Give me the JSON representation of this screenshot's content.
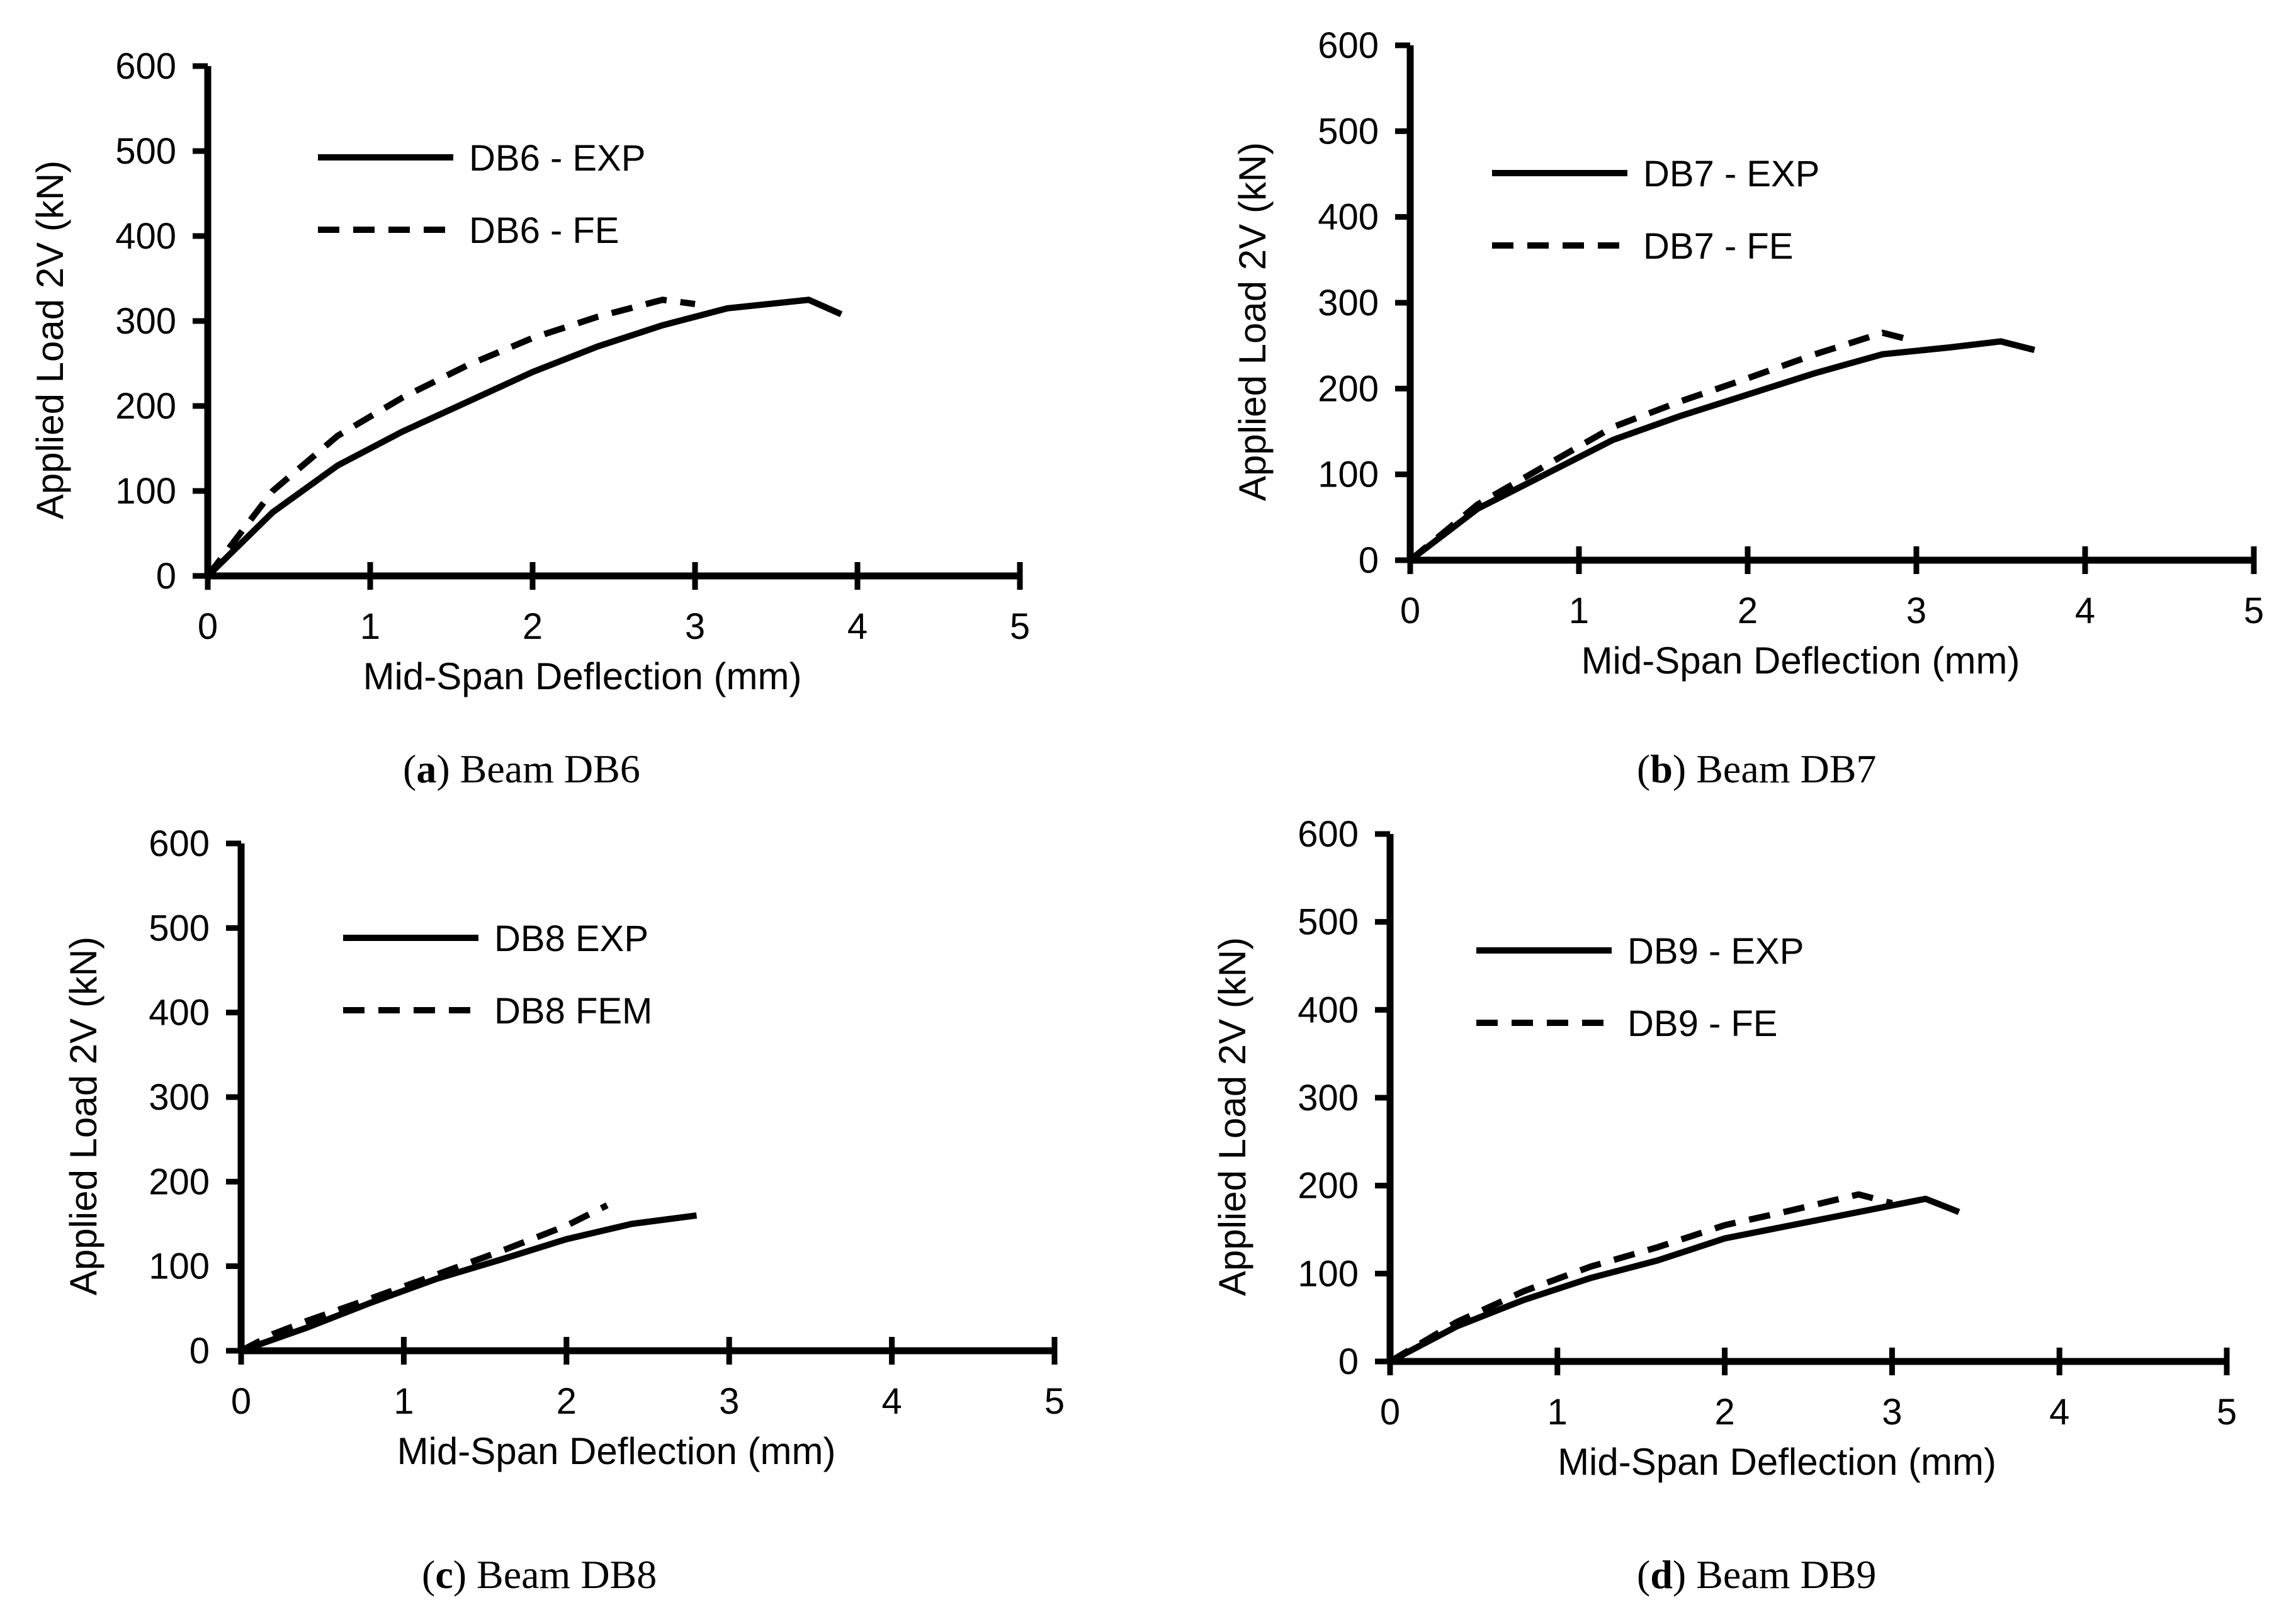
{
  "figure": {
    "panels": [
      {
        "letter": "a",
        "caption": "Beam DB6"
      },
      {
        "letter": "b",
        "caption": "Beam DB7"
      },
      {
        "letter": "c",
        "caption": "Beam DB8"
      },
      {
        "letter": "d",
        "caption": "Beam DB9"
      }
    ]
  },
  "chart_data": [
    {
      "type": "line",
      "title": "",
      "xlabel": "Mid-Span Deflection (mm)",
      "ylabel": "Applied Load 2V (kN)",
      "xlim": [
        0,
        5
      ],
      "ylim": [
        0,
        600
      ],
      "xticks": [
        "0",
        "1",
        "2",
        "3",
        "4",
        "5"
      ],
      "yticks": [
        "0",
        "100",
        "200",
        "300",
        "400",
        "500",
        "600"
      ],
      "legend_position": "top-left",
      "series": [
        {
          "name": "DB6 - EXP",
          "style": "solid",
          "x": [
            0,
            0.4,
            0.8,
            1.2,
            1.6,
            2.0,
            2.4,
            2.8,
            3.2,
            3.7,
            3.9
          ],
          "y": [
            0,
            75,
            130,
            170,
            205,
            240,
            270,
            295,
            315,
            325,
            308
          ]
        },
        {
          "name": "DB6 - FE",
          "style": "dashed",
          "x": [
            0,
            0.2,
            0.4,
            0.8,
            1.2,
            1.6,
            2.0,
            2.4,
            2.8,
            3.0
          ],
          "y": [
            0,
            50,
            100,
            165,
            210,
            248,
            280,
            305,
            325,
            320
          ]
        }
      ]
    },
    {
      "type": "line",
      "title": "",
      "xlabel": "Mid-Span Deflection (mm)",
      "ylabel": "Applied Load 2V (kN)",
      "xlim": [
        0,
        5
      ],
      "ylim": [
        0,
        600
      ],
      "xticks": [
        "0",
        "1",
        "2",
        "3",
        "4",
        "5"
      ],
      "yticks": [
        "0",
        "100",
        "200",
        "300",
        "400",
        "500",
        "600"
      ],
      "legend_position": "top-left",
      "series": [
        {
          "name": "DB7 - EXP",
          "style": "solid",
          "x": [
            0,
            0.4,
            0.8,
            1.2,
            1.6,
            2.0,
            2.4,
            2.8,
            3.2,
            3.5,
            3.7
          ],
          "y": [
            0,
            60,
            100,
            140,
            168,
            193,
            218,
            240,
            248,
            255,
            245
          ]
        },
        {
          "name": "DB7 - FE",
          "style": "dashed",
          "x": [
            0,
            0.4,
            0.8,
            1.2,
            1.6,
            2.0,
            2.4,
            2.8,
            3.0
          ],
          "y": [
            0,
            65,
            110,
            155,
            185,
            212,
            240,
            265,
            255
          ]
        }
      ]
    },
    {
      "type": "line",
      "title": "",
      "xlabel": "Mid-Span Deflection (mm)",
      "ylabel": "Applied Load 2V (kN)",
      "xlim": [
        0,
        5
      ],
      "ylim": [
        0,
        600
      ],
      "xticks": [
        "0",
        "1",
        "2",
        "3",
        "4",
        "5"
      ],
      "yticks": [
        "0",
        "100",
        "200",
        "300",
        "400",
        "500",
        "600"
      ],
      "legend_position": "top-left",
      "series": [
        {
          "name": "DB8 EXP",
          "style": "solid",
          "x": [
            0,
            0.4,
            0.8,
            1.2,
            1.6,
            2.0,
            2.4,
            2.8
          ],
          "y": [
            0,
            27,
            57,
            85,
            108,
            132,
            150,
            160
          ]
        },
        {
          "name": "DB8 FEM",
          "style": "dashed",
          "x": [
            0,
            0.2,
            0.4,
            0.8,
            1.2,
            1.6,
            2.0,
            2.25
          ],
          "y": [
            0,
            20,
            35,
            62,
            90,
            118,
            148,
            172
          ]
        }
      ]
    },
    {
      "type": "line",
      "title": "",
      "xlabel": "Mid-Span Deflection (mm)",
      "ylabel": "Applied Load 2V (kN)",
      "xlim": [
        0,
        5
      ],
      "ylim": [
        0,
        600
      ],
      "xticks": [
        "0",
        "1",
        "2",
        "3",
        "4",
        "5"
      ],
      "yticks": [
        "0",
        "100",
        "200",
        "300",
        "400",
        "500",
        "600"
      ],
      "legend_position": "top-left",
      "series": [
        {
          "name": "DB9 - EXP",
          "style": "solid",
          "x": [
            0,
            0.4,
            0.8,
            1.2,
            1.6,
            2.0,
            2.4,
            2.8,
            3.2,
            3.4
          ],
          "y": [
            0,
            40,
            70,
            95,
            115,
            140,
            155,
            170,
            185,
            170
          ]
        },
        {
          "name": "DB9 - FE",
          "style": "dashed",
          "x": [
            0,
            0.4,
            0.8,
            1.2,
            1.6,
            2.0,
            2.4,
            2.8,
            3.0
          ],
          "y": [
            0,
            45,
            80,
            108,
            130,
            155,
            172,
            190,
            180
          ]
        }
      ]
    }
  ]
}
